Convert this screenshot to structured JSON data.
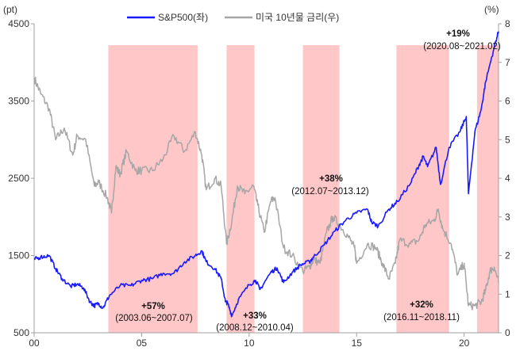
{
  "chart_data": {
    "type": "line",
    "title": "",
    "left_axis": {
      "label": "(pt)",
      "ylim": [
        500,
        4500
      ],
      "ticks": [
        500,
        1500,
        2500,
        3500,
        4500
      ]
    },
    "right_axis": {
      "label": "(%)",
      "ylim": [
        0,
        8
      ],
      "ticks": [
        0,
        1,
        2,
        3,
        4,
        5,
        6,
        7,
        8
      ]
    },
    "x_axis": {
      "xlim": [
        2000,
        2021.6
      ],
      "ticks": [
        2000,
        2005,
        2010,
        2015,
        2020
      ],
      "tick_labels": [
        "00",
        "05",
        "10",
        "15",
        "20"
      ]
    },
    "colors": {
      "sp500": "#1a1aff",
      "yield": "#a6a6a6",
      "shade": "#ffc7c7",
      "axis": "#a0a0a0",
      "text": "#111111"
    },
    "series": [
      {
        "name": "S&P500(좌)",
        "axis": "left",
        "points": [
          [
            2000.0,
            1450
          ],
          [
            2000.3,
            1480
          ],
          [
            2000.7,
            1500
          ],
          [
            2001.0,
            1330
          ],
          [
            2001.3,
            1200
          ],
          [
            2001.7,
            1100
          ],
          [
            2002.0,
            1130
          ],
          [
            2002.3,
            1080
          ],
          [
            2002.6,
            900
          ],
          [
            2002.8,
            850
          ],
          [
            2003.0,
            880
          ],
          [
            2003.2,
            820
          ],
          [
            2003.5,
            980
          ],
          [
            2004.0,
            1110
          ],
          [
            2004.5,
            1110
          ],
          [
            2005.0,
            1180
          ],
          [
            2005.5,
            1200
          ],
          [
            2006.0,
            1270
          ],
          [
            2006.5,
            1270
          ],
          [
            2007.0,
            1420
          ],
          [
            2007.5,
            1500
          ],
          [
            2007.8,
            1560
          ],
          [
            2008.0,
            1420
          ],
          [
            2008.4,
            1330
          ],
          [
            2008.7,
            1200
          ],
          [
            2008.9,
            900
          ],
          [
            2009.0,
            880
          ],
          [
            2009.2,
            720
          ],
          [
            2009.5,
            930
          ],
          [
            2010.0,
            1120
          ],
          [
            2010.3,
            1180
          ],
          [
            2010.5,
            1060
          ],
          [
            2011.0,
            1280
          ],
          [
            2011.3,
            1340
          ],
          [
            2011.6,
            1150
          ],
          [
            2012.0,
            1280
          ],
          [
            2012.4,
            1380
          ],
          [
            2012.8,
            1420
          ],
          [
            2013.0,
            1480
          ],
          [
            2013.5,
            1640
          ],
          [
            2014.0,
            1820
          ],
          [
            2014.5,
            1960
          ],
          [
            2015.0,
            2050
          ],
          [
            2015.5,
            2100
          ],
          [
            2015.7,
            1930
          ],
          [
            2016.0,
            1880
          ],
          [
            2016.5,
            2100
          ],
          [
            2016.9,
            2200
          ],
          [
            2017.5,
            2430
          ],
          [
            2017.9,
            2670
          ],
          [
            2018.1,
            2780
          ],
          [
            2018.3,
            2650
          ],
          [
            2018.7,
            2900
          ],
          [
            2018.9,
            2420
          ],
          [
            2019.3,
            2900
          ],
          [
            2019.8,
            3100
          ],
          [
            2020.1,
            3300
          ],
          [
            2020.2,
            2300
          ],
          [
            2020.5,
            3100
          ],
          [
            2020.8,
            3400
          ],
          [
            2021.0,
            3750
          ],
          [
            2021.4,
            4200
          ],
          [
            2021.6,
            4400
          ]
        ]
      },
      {
        "name": "미국 10년물 금리(우)",
        "axis": "right",
        "points": [
          [
            2000.0,
            6.6
          ],
          [
            2000.3,
            6.2
          ],
          [
            2000.7,
            5.8
          ],
          [
            2001.0,
            5.0
          ],
          [
            2001.4,
            5.3
          ],
          [
            2001.8,
            4.6
          ],
          [
            2002.0,
            5.1
          ],
          [
            2002.4,
            5.0
          ],
          [
            2002.8,
            3.8
          ],
          [
            2003.0,
            3.9
          ],
          [
            2003.4,
            3.5
          ],
          [
            2003.6,
            3.1
          ],
          [
            2003.8,
            4.3
          ],
          [
            2004.0,
            4.1
          ],
          [
            2004.3,
            4.7
          ],
          [
            2004.7,
            4.2
          ],
          [
            2005.0,
            4.2
          ],
          [
            2005.5,
            4.2
          ],
          [
            2006.0,
            4.5
          ],
          [
            2006.5,
            5.1
          ],
          [
            2007.0,
            4.7
          ],
          [
            2007.5,
            5.2
          ],
          [
            2007.8,
            4.6
          ],
          [
            2008.0,
            3.7
          ],
          [
            2008.4,
            4.0
          ],
          [
            2008.7,
            3.8
          ],
          [
            2008.95,
            2.3
          ],
          [
            2009.2,
            2.9
          ],
          [
            2009.45,
            3.8
          ],
          [
            2009.8,
            3.6
          ],
          [
            2010.2,
            3.8
          ],
          [
            2010.4,
            3.3
          ],
          [
            2010.7,
            2.6
          ],
          [
            2011.0,
            3.4
          ],
          [
            2011.2,
            3.5
          ],
          [
            2011.6,
            2.2
          ],
          [
            2012.0,
            2.0
          ],
          [
            2012.5,
            1.6
          ],
          [
            2012.8,
            1.7
          ],
          [
            2013.0,
            1.9
          ],
          [
            2013.3,
            1.8
          ],
          [
            2013.6,
            2.6
          ],
          [
            2013.9,
            3.0
          ],
          [
            2014.2,
            2.8
          ],
          [
            2014.6,
            2.5
          ],
          [
            2014.9,
            2.2
          ],
          [
            2015.0,
            1.8
          ],
          [
            2015.5,
            2.3
          ],
          [
            2015.9,
            2.2
          ],
          [
            2016.2,
            1.8
          ],
          [
            2016.5,
            1.4
          ],
          [
            2016.8,
            1.8
          ],
          [
            2017.0,
            2.4
          ],
          [
            2017.5,
            2.3
          ],
          [
            2017.9,
            2.4
          ],
          [
            2018.2,
            2.8
          ],
          [
            2018.6,
            2.9
          ],
          [
            2018.8,
            3.2
          ],
          [
            2019.0,
            2.7
          ],
          [
            2019.4,
            2.3
          ],
          [
            2019.7,
            1.5
          ],
          [
            2020.0,
            1.8
          ],
          [
            2020.2,
            0.7
          ],
          [
            2020.5,
            0.7
          ],
          [
            2020.8,
            0.8
          ],
          [
            2021.0,
            1.1
          ],
          [
            2021.2,
            1.6
          ],
          [
            2021.4,
            1.7
          ],
          [
            2021.6,
            1.3
          ]
        ]
      }
    ],
    "shaded_periods": [
      {
        "start": 2003.45,
        "end": 2007.6,
        "change": "+57%",
        "period": "(2003.06~2007.07)"
      },
      {
        "start": 2008.95,
        "end": 2010.25,
        "change": "+33%",
        "period": "(2008.12~2010.04)"
      },
      {
        "start": 2012.5,
        "end": 2014.2,
        "change": "+38%",
        "period": "(2012.07~2013.12)"
      },
      {
        "start": 2016.85,
        "end": 2019.3,
        "change": "+32%",
        "period": "(2016.11~2018.11)"
      },
      {
        "start": 2020.6,
        "end": 2021.6,
        "change": "+19%",
        "period": "(2020.08~2021.02)"
      }
    ],
    "legend": {
      "position": "top-center",
      "entries": [
        "S&P500(좌)",
        "미국 10년물 금리(우)"
      ]
    }
  }
}
